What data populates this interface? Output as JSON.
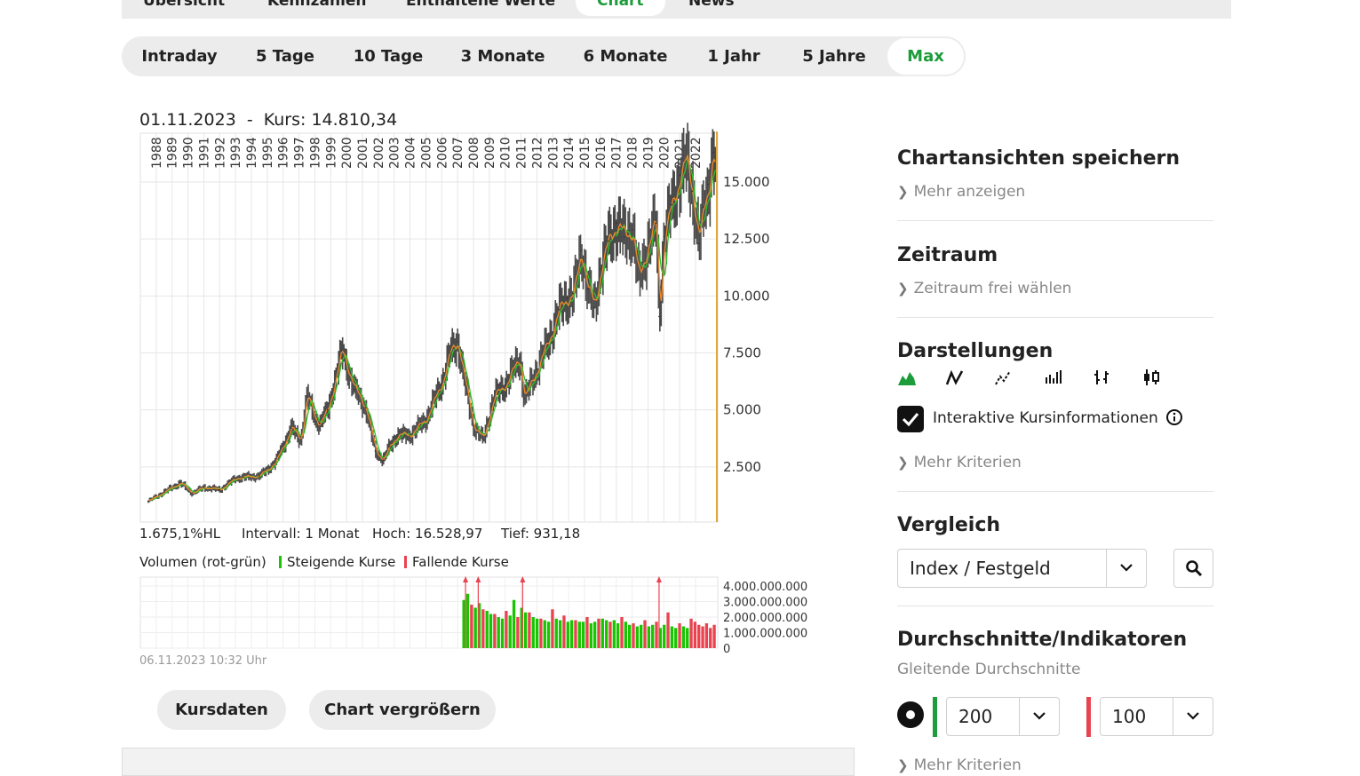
{
  "topnav": {
    "tabs": [
      {
        "label": "Übersicht",
        "active": false
      },
      {
        "label": "Kennzahlen",
        "active": false
      },
      {
        "label": "Enthaltene Werte",
        "active": false
      },
      {
        "label": "Chart",
        "active": true
      },
      {
        "label": "News",
        "active": false
      }
    ]
  },
  "periods": {
    "items": [
      "Intraday",
      "5 Tage",
      "10 Tage",
      "3 Monate",
      "6 Monate",
      "1 Jahr",
      "5 Jahre",
      "Max"
    ],
    "active": "Max"
  },
  "chart": {
    "header_date": "01.11.2023",
    "header_sep": "-",
    "header_kurs": "Kurs: 14.810,34",
    "accent_color": "#1c9c3a",
    "cursor_color": "#e0a83a",
    "stats": {
      "hl": "1.675,1%HL",
      "interval": "Intervall: 1 Monat",
      "hoch": "Hoch: 16.528,97",
      "tief": "Tief: 931,18"
    },
    "volume_legend": {
      "title": "Volumen (rot-grün)",
      "rising": "Steigende Kurse",
      "falling": "Fallende Kurse",
      "rising_color": "#19c400",
      "falling_color": "#e8434f"
    },
    "timestamp": "06.11.2023 10:32 Uhr"
  },
  "chart_data": [
    {
      "type": "line",
      "x_tick_labels": [
        "1988",
        "1989",
        "1990",
        "1991",
        "1992",
        "1993",
        "1994",
        "1995",
        "1996",
        "1997",
        "1998",
        "1999",
        "2000",
        "2001",
        "2002",
        "2003",
        "2004",
        "2005",
        "2006",
        "2007",
        "2008",
        "2009",
        "2010",
        "2011",
        "2012",
        "2013",
        "2014",
        "2015",
        "2016",
        "2017",
        "2018",
        "2019",
        "2020",
        "2021",
        "2022"
      ],
      "y_tick_labels": [
        "15.000",
        "12.500",
        "10.000",
        "7.500",
        "5.000",
        "2.500"
      ],
      "ylim": [
        0,
        17000
      ],
      "x": [
        1988.0,
        1989.0,
        1990.0,
        1990.75,
        1991.5,
        1992.5,
        1993.5,
        1994.0,
        1995.0,
        1996.0,
        1997.0,
        1997.6,
        1998.0,
        1998.6,
        1998.8,
        1999.3,
        2000.2,
        2001.0,
        2001.7,
        2002.3,
        2002.8,
        2003.2,
        2003.7,
        2004.5,
        2005.5,
        2006.5,
        2007.0,
        2007.5,
        2008.0,
        2008.5,
        2009.1,
        2009.8,
        2010.5,
        2011.4,
        2011.7,
        2012.5,
        2013.2,
        2013.9,
        2014.4,
        2014.8,
        2015.3,
        2015.7,
        2016.1,
        2016.5,
        2017.0,
        2017.5,
        2018.0,
        2018.5,
        2018.9,
        2019.5,
        2020.0,
        2020.2,
        2020.5,
        2021.0,
        2021.5,
        2021.9,
        2022.3,
        2022.7,
        2023.0,
        2023.3,
        2023.6,
        2023.83
      ],
      "series": [
        {
          "values": [
            1000,
            1400,
            1800,
            1350,
            1600,
            1500,
            2000,
            2050,
            2100,
            2700,
            4200,
            3700,
            5600,
            4500,
            4400,
            5000,
            7600,
            5900,
            5100,
            3200,
            2800,
            3400,
            3900,
            3900,
            4600,
            6200,
            7500,
            8000,
            6000,
            4300,
            3700,
            5600,
            6100,
            7300,
            5500,
            6800,
            8000,
            9400,
            9900,
            10100,
            12000,
            10300,
            9500,
            11200,
            12400,
            13200,
            12600,
            12900,
            10700,
            12300,
            13200,
            9100,
            12600,
            14000,
            15300,
            15900,
            14600,
            12300,
            13900,
            14900,
            16300,
            14810
          ]
        }
      ]
    },
    {
      "type": "bar",
      "y_tick_labels": [
        "4.000.000.000",
        "3.000.000.000",
        "2.000.000.000",
        "1.000.000.000",
        "0"
      ],
      "ylim": [
        0,
        4500000000
      ],
      "x_range": [
        2007.8,
        2023.83
      ],
      "series": [
        {
          "name": "Steigende Kurse",
          "values": [
            3100000000,
            3500000000,
            2600000000,
            2900000000,
            2400000000,
            2200000000,
            2000000000,
            1900000000,
            2100000000,
            3100000000,
            2600000000,
            2300000000,
            2000000000,
            1900000000,
            1800000000,
            1700000000,
            1900000000,
            1800000000,
            1700000000,
            1800000000,
            1700000000,
            1700000000,
            1600000000,
            1700000000,
            1900000000,
            1800000000,
            1800000000,
            1600000000,
            1700000000,
            1500000000,
            1400000000,
            1500000000,
            1400000000,
            1500000000,
            1300000000,
            1500000000,
            1400000000,
            1300000000,
            1400000000,
            1300000000
          ]
        },
        {
          "name": "Fallende Kurse",
          "values": [
            2800000000,
            2500000000,
            2200000000,
            2400000000,
            2000000000,
            2300000000,
            1900000000,
            2500000000,
            2100000000,
            1800000000,
            2000000000,
            1900000000,
            1700000000,
            2000000000,
            1600000000,
            1800000000,
            1700000000,
            2300000000,
            1600000000,
            1900000000,
            1700000000,
            1500000000,
            1400000000,
            1600000000,
            1300000000,
            1500000000
          ]
        }
      ]
    }
  ],
  "sidebar": {
    "save": {
      "title": "Chartansichten speichern",
      "link": "Mehr anzeigen"
    },
    "zeitraum": {
      "title": "Zeitraum",
      "link": "Zeitraum frei wählen"
    },
    "darstellungen": {
      "title": "Darstellungen",
      "icons": [
        "mountain-chart-icon",
        "line-chart-icon",
        "dotted-line-chart-icon",
        "bar-chart-icon",
        "ohlc-chart-icon",
        "candlestick-chart-icon"
      ],
      "interactive_label": "Interaktive Kursinformationen",
      "interactive_checked": true,
      "link": "Mehr Kriterien"
    },
    "vergleich": {
      "title": "Vergleich",
      "select_value": "Index / Festgeld"
    },
    "indikatoren": {
      "title": "Durchschnitte/Indikatoren",
      "subtitle": "Gleitende Durchschnitte",
      "ma1_value": "200",
      "ma1_color": "#1c9c3a",
      "ma2_value": "100",
      "ma2_color": "#e8434f",
      "link": "Mehr Kriterien"
    }
  }
}
